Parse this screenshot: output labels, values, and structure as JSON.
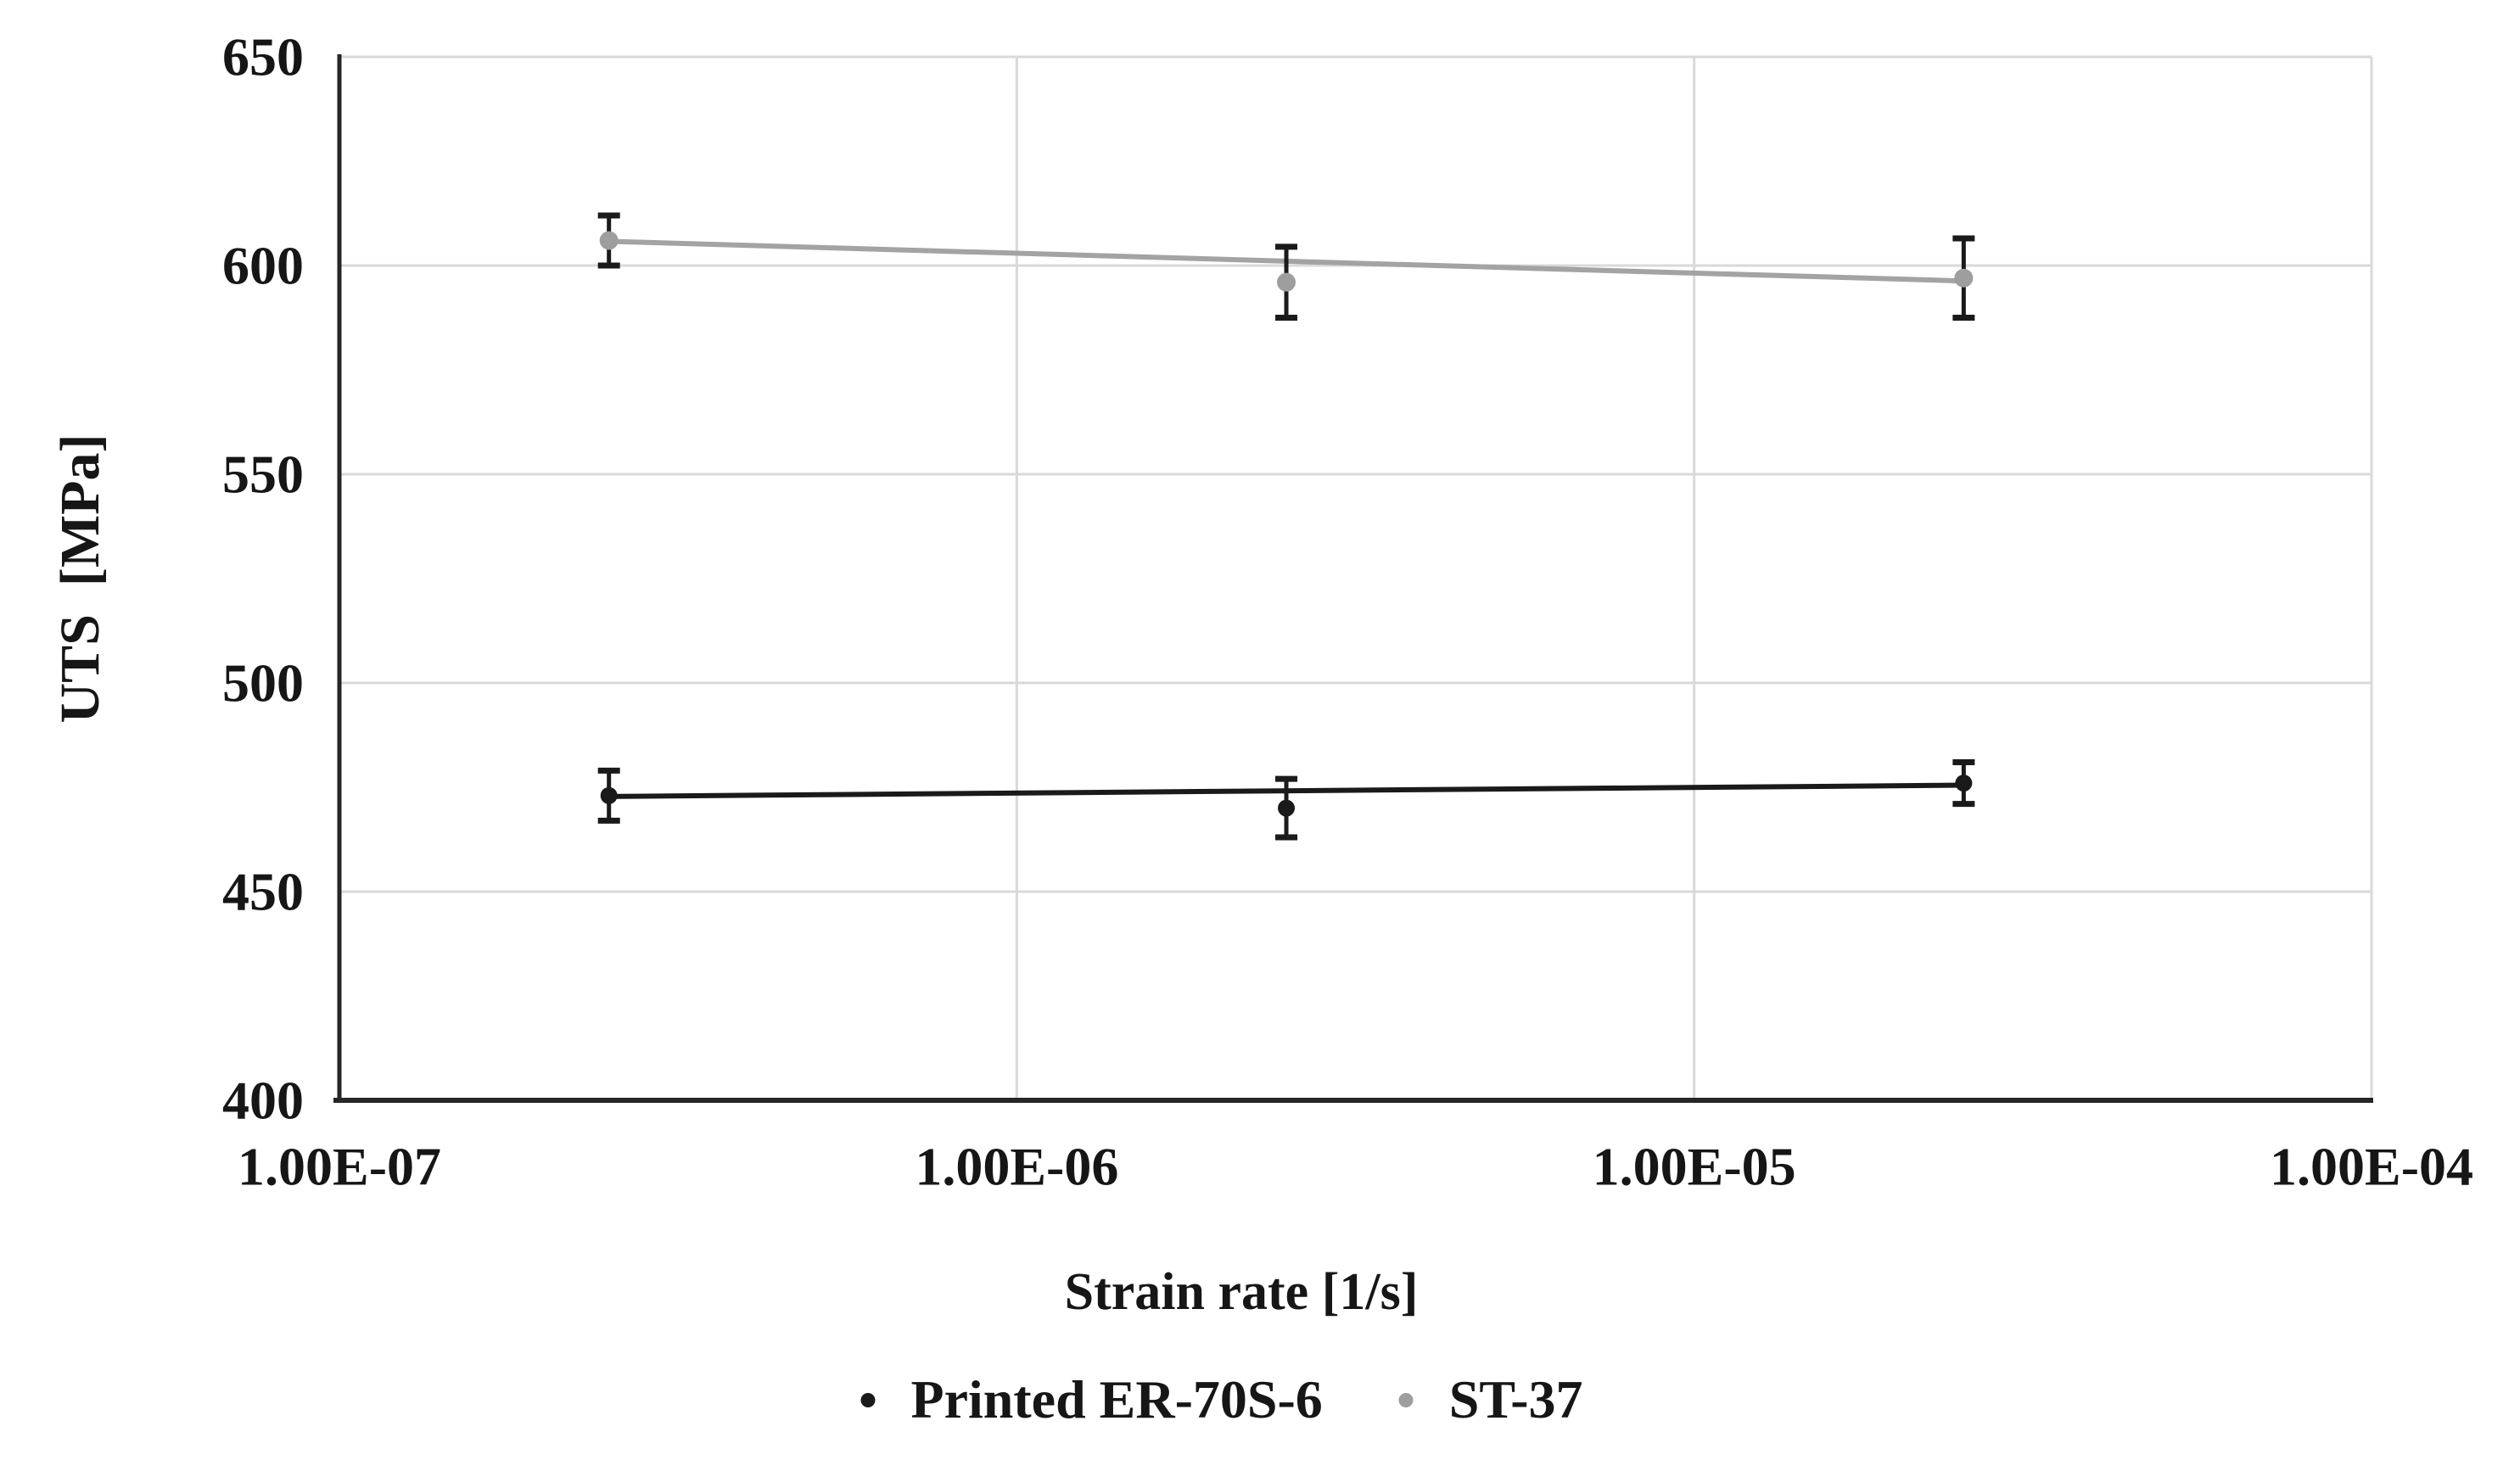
{
  "chart_data": {
    "type": "scatter",
    "title": "",
    "xlabel": "Strain rate [1/s]",
    "ylabel": "UTS  [MPa]",
    "x_scale": "log",
    "xlim": [
      1e-07,
      0.0001
    ],
    "ylim": [
      400,
      650
    ],
    "grid": true,
    "legend_position": "bottom",
    "x_tick_values": [
      1e-07,
      1e-06,
      1e-05,
      0.0001
    ],
    "x_tick_labels": [
      "1.00E-07",
      "1.00E-06",
      "1.00E-05",
      "1.00E-04"
    ],
    "y_tick_values": [
      650,
      600,
      550,
      500,
      450,
      400
    ],
    "y_tick_labels": [
      "650",
      "600",
      "550",
      "500",
      "450",
      "400"
    ],
    "gridline_color": "#d9d9d9",
    "axis_color": "#262626",
    "tick_label_color": "#161616",
    "error_bar_color": "#1a1a1a",
    "series": [
      {
        "name": "Printed ER-70S-6",
        "color": "#1a1a1a",
        "marker": "circle",
        "x": [
          2.5e-07,
          2.5e-06,
          2.5e-05
        ],
        "y": [
          473,
          470,
          476
        ],
        "yerr": [
          6,
          7,
          5
        ],
        "trendline": {
          "x": [
            2.5e-07,
            2.5e-05
          ],
          "y": [
            472.8,
            475.5
          ],
          "color": "#1a1a1a"
        }
      },
      {
        "name": "ST-37",
        "color": "#9e9e9e",
        "marker": "circle",
        "x": [
          2.5e-07,
          2.5e-06,
          2.5e-05
        ],
        "y": [
          606,
          596,
          597
        ],
        "yerr": [
          6,
          8.5,
          9.5
        ],
        "trendline": {
          "x": [
            2.5e-07,
            2.5e-05
          ],
          "y": [
            605.8,
            596.3
          ],
          "color": "#a3a3a3"
        }
      }
    ]
  }
}
